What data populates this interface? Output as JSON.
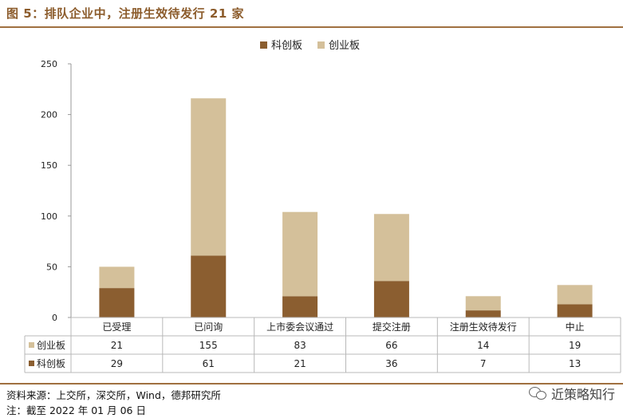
{
  "header": {
    "title": "图 5：排队企业中，注册生效待发行 21 家"
  },
  "footer": {
    "source": "资料来源：上交所，深交所，Wind，德邦研究所",
    "note": "注：截至 2022 年 01 月 06 日",
    "watermark": "近策略知行"
  },
  "colors": {
    "kechuang": "#8b5e30",
    "chuangye": "#d4c09a",
    "accent": "#8c5c2c",
    "grid": "#bfbfbf"
  },
  "icons": {
    "watermark": "wechat-icon"
  },
  "chart_data": {
    "type": "bar",
    "stacked": true,
    "categories": [
      "已受理",
      "已问询",
      "上市委会议通过",
      "提交注册",
      "注册生效待发行",
      "中止"
    ],
    "series": [
      {
        "name": "科创板",
        "values": [
          29,
          61,
          21,
          36,
          7,
          13
        ],
        "color": "#8b5e30"
      },
      {
        "name": "创业板",
        "values": [
          21,
          155,
          83,
          66,
          14,
          19
        ],
        "color": "#d4c09a"
      }
    ],
    "table_rows": [
      {
        "name": "创业板",
        "values": [
          21,
          155,
          83,
          66,
          14,
          19
        ]
      },
      {
        "name": "科创板",
        "values": [
          29,
          61,
          21,
          36,
          7,
          13
        ]
      }
    ],
    "ylim": [
      0,
      250
    ],
    "yticks": [
      0,
      50,
      100,
      150,
      200,
      250
    ],
    "legend": "top-center",
    "grid": false
  }
}
